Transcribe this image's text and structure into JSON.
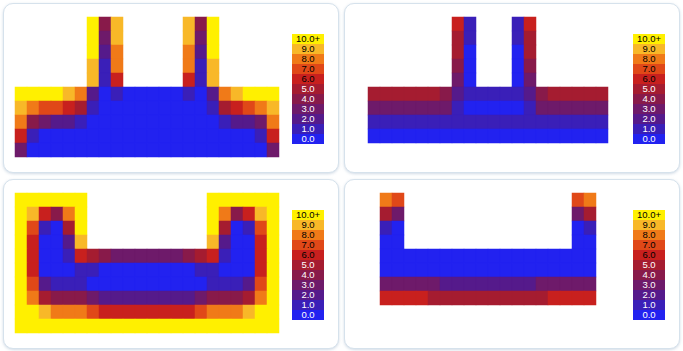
{
  "chart_data": [
    {
      "type": "heatmap",
      "cells": [
        [
          null,
          null,
          null,
          null,
          null,
          null,
          10,
          4,
          9,
          null,
          null,
          null,
          null,
          null,
          9,
          4,
          10,
          null,
          null,
          null,
          null,
          null
        ],
        [
          null,
          null,
          null,
          null,
          null,
          null,
          10,
          3,
          9,
          null,
          null,
          null,
          null,
          null,
          9,
          3,
          10,
          null,
          null,
          null,
          null,
          null
        ],
        [
          null,
          null,
          null,
          null,
          null,
          null,
          10,
          2,
          8,
          null,
          null,
          null,
          null,
          null,
          8,
          2,
          10,
          null,
          null,
          null,
          null,
          null
        ],
        [
          null,
          null,
          null,
          null,
          null,
          null,
          9,
          1,
          8,
          null,
          null,
          null,
          null,
          null,
          8,
          1,
          9,
          null,
          null,
          null,
          null,
          null
        ],
        [
          null,
          null,
          null,
          null,
          null,
          null,
          9,
          1,
          6,
          null,
          null,
          null,
          null,
          null,
          6,
          1,
          9,
          null,
          null,
          null,
          null,
          null
        ],
        [
          10,
          10,
          10,
          10,
          9,
          8,
          2,
          0,
          1,
          0,
          0,
          0,
          0,
          0,
          1,
          0,
          2,
          8,
          9,
          10,
          10,
          10
        ],
        [
          9,
          8,
          7,
          7,
          6,
          5,
          1,
          0,
          0,
          0,
          0,
          0,
          0,
          0,
          0,
          0,
          1,
          5,
          6,
          7,
          8,
          9
        ],
        [
          8,
          4,
          3,
          2,
          2,
          1,
          0,
          0,
          0,
          0,
          0,
          0,
          0,
          0,
          0,
          0,
          0,
          1,
          2,
          2,
          3,
          8
        ],
        [
          6,
          1,
          0,
          0,
          0,
          0,
          0,
          0,
          0,
          0,
          0,
          0,
          0,
          0,
          0,
          0,
          0,
          0,
          0,
          0,
          1,
          6
        ],
        [
          3,
          0,
          0,
          0,
          0,
          0,
          0,
          0,
          0,
          0,
          0,
          0,
          0,
          0,
          0,
          0,
          0,
          0,
          0,
          0,
          0,
          3
        ]
      ],
      "colorbar": {
        "range": [
          0,
          10
        ],
        "ticks": [
          {
            "value": 0,
            "label": "0.0"
          },
          {
            "value": 1,
            "label": "1.0"
          },
          {
            "value": 2,
            "label": "2.0"
          },
          {
            "value": 3,
            "label": "3.0"
          },
          {
            "value": 4,
            "label": "4.0"
          },
          {
            "value": 5,
            "label": "5.0"
          },
          {
            "value": 6,
            "label": "6.0"
          },
          {
            "value": 7,
            "label": "7.0"
          },
          {
            "value": 8,
            "label": "8.0"
          },
          {
            "value": 9,
            "label": "9.0"
          },
          {
            "value": 10,
            "label": "10.0+"
          }
        ],
        "colors": [
          "#2222f0",
          "#3a1fb8",
          "#551a8b",
          "#6e1a6a",
          "#881a4a",
          "#a51c30",
          "#c8201e",
          "#e04818",
          "#f07a18",
          "#f8b828",
          "#fff000"
        ]
      }
    },
    {
      "type": "heatmap",
      "cells": [
        [
          null,
          null,
          null,
          null,
          null,
          null,
          null,
          null,
          6,
          1,
          null,
          null,
          null,
          1,
          6,
          null,
          null,
          null,
          null,
          null,
          null,
          null
        ],
        [
          null,
          null,
          null,
          null,
          null,
          null,
          null,
          null,
          5,
          1,
          null,
          null,
          null,
          1,
          5,
          null,
          null,
          null,
          null,
          null,
          null,
          null
        ],
        [
          null,
          null,
          null,
          null,
          null,
          null,
          null,
          null,
          5,
          0,
          null,
          null,
          null,
          0,
          5,
          null,
          null,
          null,
          null,
          null,
          null,
          null
        ],
        [
          null,
          null,
          null,
          null,
          null,
          null,
          null,
          null,
          4,
          0,
          null,
          null,
          null,
          0,
          4,
          null,
          null,
          null,
          null,
          null,
          null,
          null
        ],
        [
          null,
          null,
          null,
          null,
          null,
          null,
          null,
          null,
          3,
          0,
          null,
          null,
          null,
          0,
          3,
          null,
          null,
          null,
          null,
          null,
          null,
          null
        ],
        [
          null,
          5,
          5,
          5,
          5,
          5,
          5,
          4,
          2,
          1,
          1,
          1,
          1,
          1,
          2,
          4,
          5,
          5,
          5,
          5,
          5,
          null
        ],
        [
          null,
          3,
          3,
          3,
          3,
          3,
          3,
          3,
          1,
          0,
          0,
          0,
          0,
          0,
          1,
          3,
          3,
          3,
          3,
          3,
          3,
          null
        ],
        [
          null,
          1,
          1,
          1,
          1,
          1,
          1,
          1,
          1,
          1,
          1,
          1,
          1,
          1,
          1,
          1,
          1,
          1,
          1,
          1,
          1,
          null
        ],
        [
          null,
          0,
          0,
          0,
          0,
          0,
          0,
          0,
          0,
          0,
          0,
          0,
          0,
          0,
          0,
          0,
          0,
          0,
          0,
          0,
          0,
          null
        ],
        [
          null,
          null,
          null,
          null,
          null,
          null,
          null,
          null,
          null,
          null,
          null,
          null,
          null,
          null,
          null,
          null,
          null,
          null,
          null,
          null,
          null,
          null
        ]
      ],
      "colorbar": {
        "range": [
          0,
          10
        ],
        "ticks": [
          {
            "value": 0,
            "label": "0.0"
          },
          {
            "value": 1,
            "label": "1.0"
          },
          {
            "value": 2,
            "label": "2.0"
          },
          {
            "value": 3,
            "label": "3.0"
          },
          {
            "value": 4,
            "label": "4.0"
          },
          {
            "value": 5,
            "label": "5.0"
          },
          {
            "value": 6,
            "label": "6.0"
          },
          {
            "value": 7,
            "label": "7.0"
          },
          {
            "value": 8,
            "label": "8.0"
          },
          {
            "value": 9,
            "label": "9.0"
          },
          {
            "value": 10,
            "label": "10.0+"
          }
        ],
        "colors": [
          "#2222f0",
          "#3a1fb8",
          "#551a8b",
          "#6e1a6a",
          "#881a4a",
          "#a51c30",
          "#c8201e",
          "#e04818",
          "#f07a18",
          "#f8b828",
          "#fff000"
        ]
      }
    },
    {
      "type": "heatmap",
      "cells": [
        [
          10,
          10,
          10,
          10,
          10,
          10,
          null,
          null,
          null,
          null,
          null,
          null,
          null,
          null,
          null,
          null,
          10,
          10,
          10,
          10,
          10,
          10
        ],
        [
          10,
          9,
          6,
          4,
          8,
          10,
          null,
          null,
          null,
          null,
          null,
          null,
          null,
          null,
          null,
          null,
          10,
          8,
          4,
          6,
          9,
          10
        ],
        [
          10,
          7,
          1,
          0,
          5,
          10,
          null,
          null,
          null,
          null,
          null,
          null,
          null,
          null,
          null,
          null,
          10,
          5,
          0,
          1,
          7,
          10
        ],
        [
          10,
          6,
          0,
          0,
          2,
          9,
          null,
          null,
          null,
          null,
          null,
          null,
          null,
          null,
          null,
          null,
          9,
          2,
          0,
          0,
          6,
          10
        ],
        [
          10,
          6,
          0,
          0,
          1,
          6,
          5,
          4,
          3,
          3,
          3,
          3,
          3,
          3,
          4,
          5,
          6,
          1,
          0,
          0,
          6,
          10
        ],
        [
          10,
          6,
          0,
          0,
          0,
          1,
          1,
          0,
          0,
          0,
          0,
          0,
          0,
          0,
          0,
          1,
          1,
          0,
          0,
          0,
          6,
          10
        ],
        [
          10,
          7,
          2,
          1,
          1,
          1,
          0,
          0,
          0,
          0,
          0,
          0,
          0,
          0,
          0,
          0,
          1,
          1,
          1,
          2,
          7,
          10
        ],
        [
          10,
          8,
          5,
          4,
          4,
          4,
          3,
          2,
          2,
          2,
          2,
          2,
          2,
          2,
          2,
          3,
          4,
          4,
          4,
          5,
          8,
          10
        ],
        [
          10,
          10,
          9,
          8,
          8,
          8,
          7,
          6,
          6,
          6,
          6,
          6,
          6,
          6,
          6,
          7,
          8,
          8,
          8,
          9,
          10,
          10
        ],
        [
          10,
          10,
          10,
          10,
          10,
          10,
          10,
          10,
          10,
          10,
          10,
          10,
          10,
          10,
          10,
          10,
          10,
          10,
          10,
          10,
          10,
          10
        ]
      ],
      "colorbar": {
        "range": [
          0,
          10
        ],
        "ticks": [
          {
            "value": 0,
            "label": "0.0"
          },
          {
            "value": 1,
            "label": "1.0"
          },
          {
            "value": 2,
            "label": "2.0"
          },
          {
            "value": 3,
            "label": "3.0"
          },
          {
            "value": 4,
            "label": "4.0"
          },
          {
            "value": 5,
            "label": "5.0"
          },
          {
            "value": 6,
            "label": "6.0"
          },
          {
            "value": 7,
            "label": "7.0"
          },
          {
            "value": 8,
            "label": "8.0"
          },
          {
            "value": 9,
            "label": "9.0"
          },
          {
            "value": 10,
            "label": "10.0+"
          }
        ],
        "colors": [
          "#2222f0",
          "#3a1fb8",
          "#551a8b",
          "#6e1a6a",
          "#881a4a",
          "#a51c30",
          "#c8201e",
          "#e04818",
          "#f07a18",
          "#f8b828",
          "#fff000"
        ]
      }
    },
    {
      "type": "heatmap",
      "cells": [
        [
          null,
          null,
          8,
          7,
          null,
          null,
          null,
          null,
          null,
          null,
          null,
          null,
          null,
          null,
          null,
          null,
          null,
          null,
          7,
          8,
          null,
          null
        ],
        [
          null,
          null,
          5,
          3,
          null,
          null,
          null,
          null,
          null,
          null,
          null,
          null,
          null,
          null,
          null,
          null,
          null,
          null,
          3,
          5,
          null,
          null
        ],
        [
          null,
          null,
          1,
          0,
          null,
          null,
          null,
          null,
          null,
          null,
          null,
          null,
          null,
          null,
          null,
          null,
          null,
          null,
          0,
          1,
          null,
          null
        ],
        [
          null,
          null,
          0,
          0,
          null,
          null,
          null,
          null,
          null,
          null,
          null,
          null,
          null,
          null,
          null,
          null,
          null,
          null,
          0,
          0,
          null,
          null
        ],
        [
          null,
          null,
          0,
          0,
          0,
          0,
          0,
          0,
          0,
          0,
          0,
          0,
          0,
          0,
          0,
          0,
          0,
          0,
          0,
          0,
          null,
          null
        ],
        [
          null,
          null,
          0,
          0,
          0,
          0,
          0,
          0,
          0,
          0,
          0,
          0,
          0,
          0,
          0,
          0,
          0,
          0,
          0,
          0,
          null,
          null
        ],
        [
          null,
          null,
          3,
          3,
          3,
          3,
          3,
          2,
          2,
          2,
          2,
          2,
          2,
          2,
          2,
          3,
          3,
          3,
          3,
          3,
          null,
          null
        ],
        [
          null,
          null,
          6,
          6,
          6,
          6,
          5,
          5,
          5,
          5,
          5,
          5,
          5,
          5,
          5,
          5,
          6,
          6,
          6,
          6,
          null,
          null
        ],
        [
          null,
          null,
          null,
          null,
          null,
          null,
          null,
          null,
          null,
          null,
          null,
          null,
          null,
          null,
          null,
          null,
          null,
          null,
          null,
          null,
          null,
          null
        ],
        [
          null,
          null,
          null,
          null,
          null,
          null,
          null,
          null,
          null,
          null,
          null,
          null,
          null,
          null,
          null,
          null,
          null,
          null,
          null,
          null,
          null,
          null
        ]
      ],
      "colorbar": {
        "range": [
          0,
          10
        ],
        "ticks": [
          {
            "value": 0,
            "label": "0.0"
          },
          {
            "value": 1,
            "label": "1.0"
          },
          {
            "value": 2,
            "label": "2.0"
          },
          {
            "value": 3,
            "label": "3.0"
          },
          {
            "value": 4,
            "label": "4.0"
          },
          {
            "value": 5,
            "label": "5.0"
          },
          {
            "value": 6,
            "label": "6.0"
          },
          {
            "value": 7,
            "label": "7.0"
          },
          {
            "value": 8,
            "label": "8.0"
          },
          {
            "value": 9,
            "label": "9.0"
          },
          {
            "value": 10,
            "label": "10.0+"
          }
        ],
        "colors": [
          "#2222f0",
          "#3a1fb8",
          "#551a8b",
          "#6e1a6a",
          "#881a4a",
          "#a51c30",
          "#c8201e",
          "#e04818",
          "#f07a18",
          "#f8b828",
          "#fff000"
        ]
      }
    }
  ]
}
